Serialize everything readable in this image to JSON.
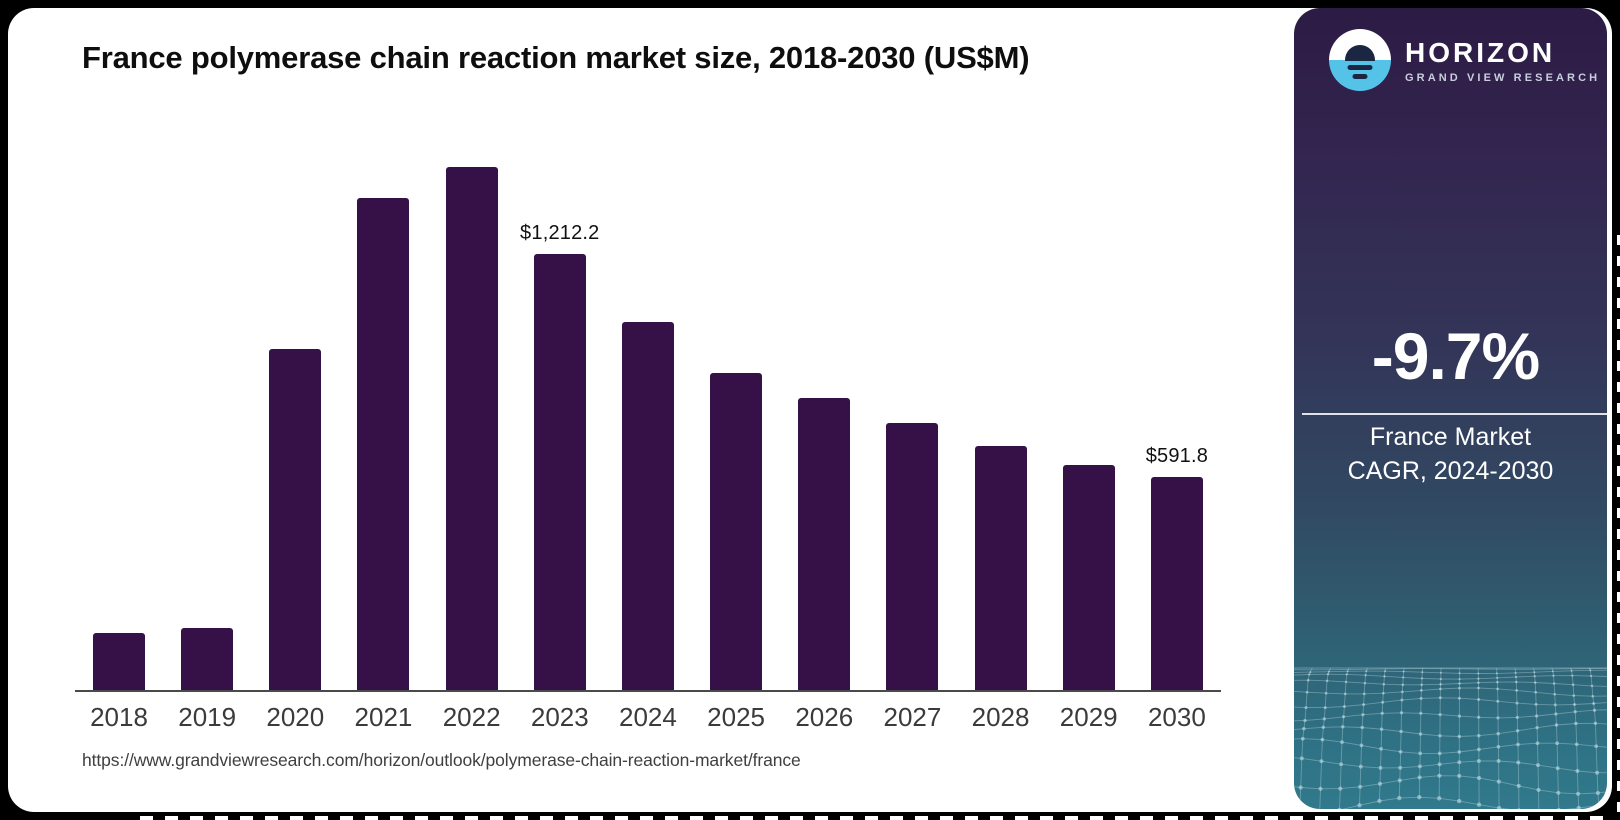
{
  "header": {
    "title": "France polymerase chain reaction market size, 2018-2030 (US$M)"
  },
  "chart_data": {
    "type": "bar",
    "title": "France polymerase chain reaction market size, 2018-2030 (US$M)",
    "unit": "US$M",
    "categories": [
      "2018",
      "2019",
      "2020",
      "2021",
      "2022",
      "2023",
      "2024",
      "2025",
      "2026",
      "2027",
      "2028",
      "2029",
      "2030"
    ],
    "values": [
      159.8,
      172.4,
      947.6,
      1367.0,
      1452.3,
      1212.2,
      1021.8,
      880.7,
      809.9,
      742.3,
      677.8,
      625.2,
      591.8
    ],
    "data_labels": {
      "2023": "$1,212.2",
      "2030": "$591.8"
    },
    "ylim": [
      0,
      1500
    ],
    "grid": false,
    "legend": "none",
    "bar_color": "#351148",
    "axis_color": "#4a4a4a"
  },
  "footer": {
    "source_url": "https://www.grandviewresearch.com/horizon/outlook/polymerase-chain-reaction-market/france"
  },
  "sidebar": {
    "brand": "HORIZON",
    "brand_sub": "GRAND VIEW RESEARCH",
    "stat_value": "-9.7%",
    "stat_caption_line1": "France Market",
    "stat_caption_line2": "CAGR, 2024-2030",
    "colors": {
      "accent_blue": "#55c3e8",
      "logo_navy": "#1b2742",
      "panel_gradient_top": "#2c1b44",
      "panel_gradient_bottom": "#31798c"
    }
  }
}
